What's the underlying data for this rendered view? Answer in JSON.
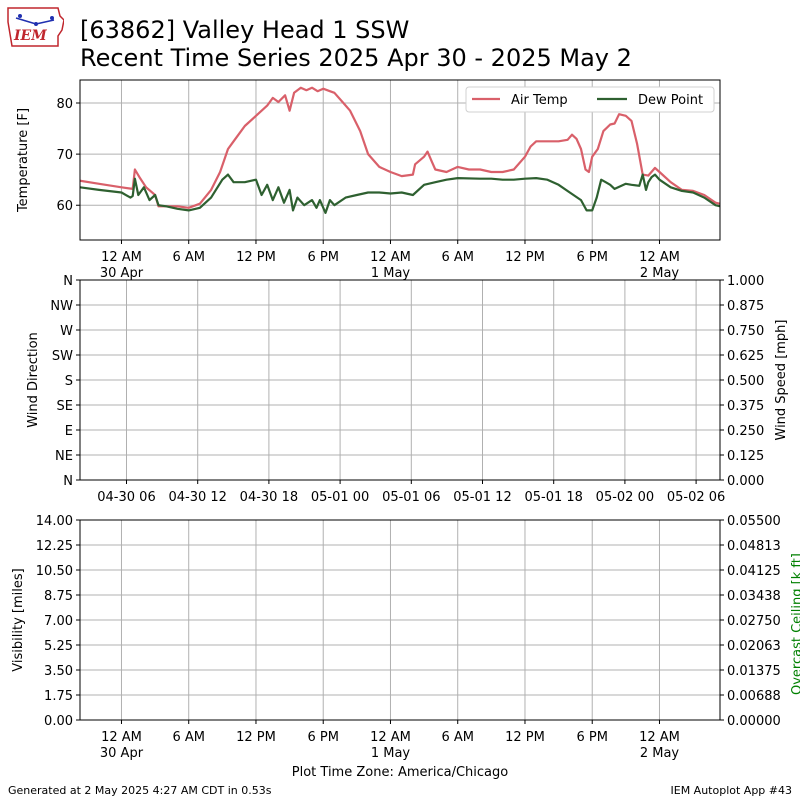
{
  "header": {
    "title_line1": "[63862] Valley Head 1 SSW",
    "title_line2": "Recent Time Series 2025 Apr 30 - 2025 May 2",
    "logo_text": "IEM"
  },
  "footer": {
    "left": "Generated at 2 May 2025 4:27 AM CDT in 0.53s",
    "right": "IEM Autoplot App #43"
  },
  "colors": {
    "air_temp": "#d9606a",
    "dew_point": "#2e6030",
    "ceiling_label": "#008000",
    "grid": "#b0b0b0"
  },
  "chart_data": [
    {
      "type": "line",
      "ylabel": "Temperature [F]",
      "ylim": [
        53.2,
        84.5
      ],
      "yticks": [
        60,
        70,
        80
      ],
      "xlim_hours": [
        -3.7,
        53.4
      ],
      "x_unit": "hours since 2025-04-30 00:00 America/Chicago",
      "xtick_labels": [
        {
          "h": 0,
          "l1": "12 AM",
          "l2": "30 Apr"
        },
        {
          "h": 6,
          "l1": "6 AM",
          "l2": ""
        },
        {
          "h": 12,
          "l1": "12 PM",
          "l2": ""
        },
        {
          "h": 18,
          "l1": "6 PM",
          "l2": ""
        },
        {
          "h": 24,
          "l1": "12 AM",
          "l2": "1 May"
        },
        {
          "h": 30,
          "l1": "6 AM",
          "l2": ""
        },
        {
          "h": 36,
          "l1": "12 PM",
          "l2": ""
        },
        {
          "h": 42,
          "l1": "6 PM",
          "l2": ""
        },
        {
          "h": 48,
          "l1": "12 AM",
          "l2": "2 May"
        }
      ],
      "legend": "top-right",
      "grid": true,
      "series": [
        {
          "name": "Air Temp",
          "points": [
            [
              -3.7,
              64.8
            ],
            [
              -2,
              64.2
            ],
            [
              0,
              63.5
            ],
            [
              1,
              63.2
            ],
            [
              1.2,
              67
            ],
            [
              1.6,
              65.5
            ],
            [
              2.2,
              63.5
            ],
            [
              3,
              62
            ],
            [
              3.3,
              59.8
            ],
            [
              5,
              59.8
            ],
            [
              6,
              59.5
            ],
            [
              7,
              60.3
            ],
            [
              8,
              63
            ],
            [
              8.8,
              66.5
            ],
            [
              9.5,
              71
            ],
            [
              10,
              72.5
            ],
            [
              11,
              75.5
            ],
            [
              12,
              77.5
            ],
            [
              13,
              79.5
            ],
            [
              13.5,
              81
            ],
            [
              14,
              80.2
            ],
            [
              14.6,
              81.5
            ],
            [
              15,
              78.5
            ],
            [
              15.4,
              82
            ],
            [
              16,
              83
            ],
            [
              16.5,
              82.5
            ],
            [
              17,
              83
            ],
            [
              17.5,
              82.3
            ],
            [
              18,
              82.8
            ],
            [
              18.6,
              82.3
            ],
            [
              19,
              82
            ],
            [
              19.8,
              80
            ],
            [
              20.4,
              78.5
            ],
            [
              21.3,
              74.5
            ],
            [
              22,
              70
            ],
            [
              23,
              67.5
            ],
            [
              24,
              66.5
            ],
            [
              25,
              65.7
            ],
            [
              26,
              66
            ],
            [
              26.2,
              68
            ],
            [
              27,
              69.5
            ],
            [
              27.3,
              70.5
            ],
            [
              27.7,
              68.5
            ],
            [
              28,
              67
            ],
            [
              29,
              66.5
            ],
            [
              30,
              67.5
            ],
            [
              31,
              67
            ],
            [
              32,
              67
            ],
            [
              33,
              66.5
            ],
            [
              34,
              66.5
            ],
            [
              35,
              67
            ],
            [
              36,
              69.5
            ],
            [
              36.5,
              71.5
            ],
            [
              37,
              72.5
            ],
            [
              39,
              72.5
            ],
            [
              39.8,
              72.8
            ],
            [
              40.2,
              73.8
            ],
            [
              40.6,
              73
            ],
            [
              41,
              71
            ],
            [
              41.4,
              67
            ],
            [
              41.7,
              66.5
            ],
            [
              42,
              69.5
            ],
            [
              42.5,
              71
            ],
            [
              43,
              74.5
            ],
            [
              43.6,
              75.8
            ],
            [
              44,
              76
            ],
            [
              44.4,
              77.8
            ],
            [
              45,
              77.5
            ],
            [
              45.5,
              76.5
            ],
            [
              46,
              72
            ],
            [
              46.5,
              66
            ],
            [
              47,
              65.8
            ],
            [
              47.6,
              67.3
            ],
            [
              48,
              66.5
            ],
            [
              49,
              64.5
            ],
            [
              50,
              63
            ],
            [
              51,
              62.8
            ],
            [
              52,
              62
            ],
            [
              53,
              60.5
            ],
            [
              54,
              60
            ],
            [
              55,
              59
            ],
            [
              55.5,
              58
            ],
            [
              57,
              58
            ],
            [
              58,
              57.3
            ]
          ]
        },
        {
          "name": "Dew Point",
          "points": [
            [
              -3.7,
              63.5
            ],
            [
              -2,
              63
            ],
            [
              0,
              62.5
            ],
            [
              0.8,
              61.5
            ],
            [
              1,
              61.8
            ],
            [
              1.2,
              65.2
            ],
            [
              1.5,
              62
            ],
            [
              2,
              63.5
            ],
            [
              2.5,
              61
            ],
            [
              3,
              62
            ],
            [
              3.3,
              60
            ],
            [
              4,
              59.8
            ],
            [
              5,
              59.3
            ],
            [
              6,
              59
            ],
            [
              7,
              59.5
            ],
            [
              8,
              61.5
            ],
            [
              9,
              65
            ],
            [
              9.5,
              66
            ],
            [
              10,
              64.5
            ],
            [
              11,
              64.5
            ],
            [
              12,
              65
            ],
            [
              12.5,
              62
            ],
            [
              13,
              64
            ],
            [
              13.5,
              61
            ],
            [
              14,
              63.5
            ],
            [
              14.5,
              60.5
            ],
            [
              15,
              63
            ],
            [
              15.3,
              59
            ],
            [
              15.7,
              61.5
            ],
            [
              16.3,
              60
            ],
            [
              17,
              61
            ],
            [
              17.4,
              59.5
            ],
            [
              17.7,
              61
            ],
            [
              18.2,
              58.5
            ],
            [
              18.6,
              61
            ],
            [
              19,
              60
            ],
            [
              20,
              61.5
            ],
            [
              21,
              62
            ],
            [
              22,
              62.5
            ],
            [
              23,
              62.5
            ],
            [
              24,
              62.3
            ],
            [
              25,
              62.5
            ],
            [
              26,
              62
            ],
            [
              27,
              64
            ],
            [
              28,
              64.5
            ],
            [
              29,
              65
            ],
            [
              30,
              65.3
            ],
            [
              32,
              65.2
            ],
            [
              33,
              65.2
            ],
            [
              34,
              65
            ],
            [
              35,
              65
            ],
            [
              36,
              65.2
            ],
            [
              37,
              65.3
            ],
            [
              38,
              65
            ],
            [
              39,
              64
            ],
            [
              40,
              62.5
            ],
            [
              41,
              61
            ],
            [
              41.5,
              59
            ],
            [
              42,
              59
            ],
            [
              42.4,
              61.5
            ],
            [
              42.8,
              65
            ],
            [
              43.2,
              64.5
            ],
            [
              43.6,
              64
            ],
            [
              44,
              63.2
            ],
            [
              45,
              64.2
            ],
            [
              45.5,
              64
            ],
            [
              46.2,
              63.8
            ],
            [
              46.5,
              66
            ],
            [
              46.8,
              63
            ],
            [
              47,
              64.5
            ],
            [
              47.3,
              65.5
            ],
            [
              47.6,
              66
            ],
            [
              48,
              65
            ],
            [
              49,
              63.5
            ],
            [
              50,
              62.8
            ],
            [
              51,
              62.5
            ],
            [
              52,
              61.5
            ],
            [
              53,
              60
            ],
            [
              54,
              59.5
            ],
            [
              55,
              58.3
            ],
            [
              56,
              57.5
            ],
            [
              57,
              57
            ],
            [
              58,
              56.8
            ]
          ]
        }
      ]
    },
    {
      "type": "line",
      "ylabel": "Wind Direction",
      "ylabel_right": "Wind Speed [mph]",
      "ylim": [
        0,
        360
      ],
      "yticks": [
        "N",
        "NE",
        "E",
        "SE",
        "S",
        "SW",
        "W",
        "NW",
        "N"
      ],
      "yticks_right": [
        "0.000",
        "0.125",
        "0.250",
        "0.375",
        "0.500",
        "0.625",
        "0.750",
        "0.875",
        "1.000"
      ],
      "xtick_labels": [
        "04-30 06",
        "04-30 12",
        "04-30 18",
        "05-01 00",
        "05-01 06",
        "05-01 12",
        "05-01 18",
        "05-02 00",
        "05-02 06"
      ],
      "grid": true,
      "series": []
    },
    {
      "type": "line",
      "ylabel": "Visibility [miles]",
      "ylabel_right": "Overcast Ceiling [k ft]",
      "yticks": [
        "0.00",
        "1.75",
        "3.50",
        "5.25",
        "7.00",
        "8.75",
        "10.50",
        "12.25",
        "14.00"
      ],
      "yticks_right": [
        "0.00000",
        "0.00688",
        "0.01375",
        "0.02063",
        "0.02750",
        "0.03438",
        "0.04125",
        "0.04813",
        "0.05500"
      ],
      "xtick_labels": [
        {
          "l1": "12 AM",
          "l2": "30 Apr"
        },
        {
          "l1": "6 AM",
          "l2": ""
        },
        {
          "l1": "12 PM",
          "l2": ""
        },
        {
          "l1": "6 PM",
          "l2": ""
        },
        {
          "l1": "12 AM",
          "l2": "1 May"
        },
        {
          "l1": "6 AM",
          "l2": ""
        },
        {
          "l1": "12 PM",
          "l2": ""
        },
        {
          "l1": "6 PM",
          "l2": ""
        },
        {
          "l1": "12 AM",
          "l2": "2 May"
        }
      ],
      "xlabel": "Plot Time Zone: America/Chicago",
      "grid": true,
      "series": []
    }
  ]
}
